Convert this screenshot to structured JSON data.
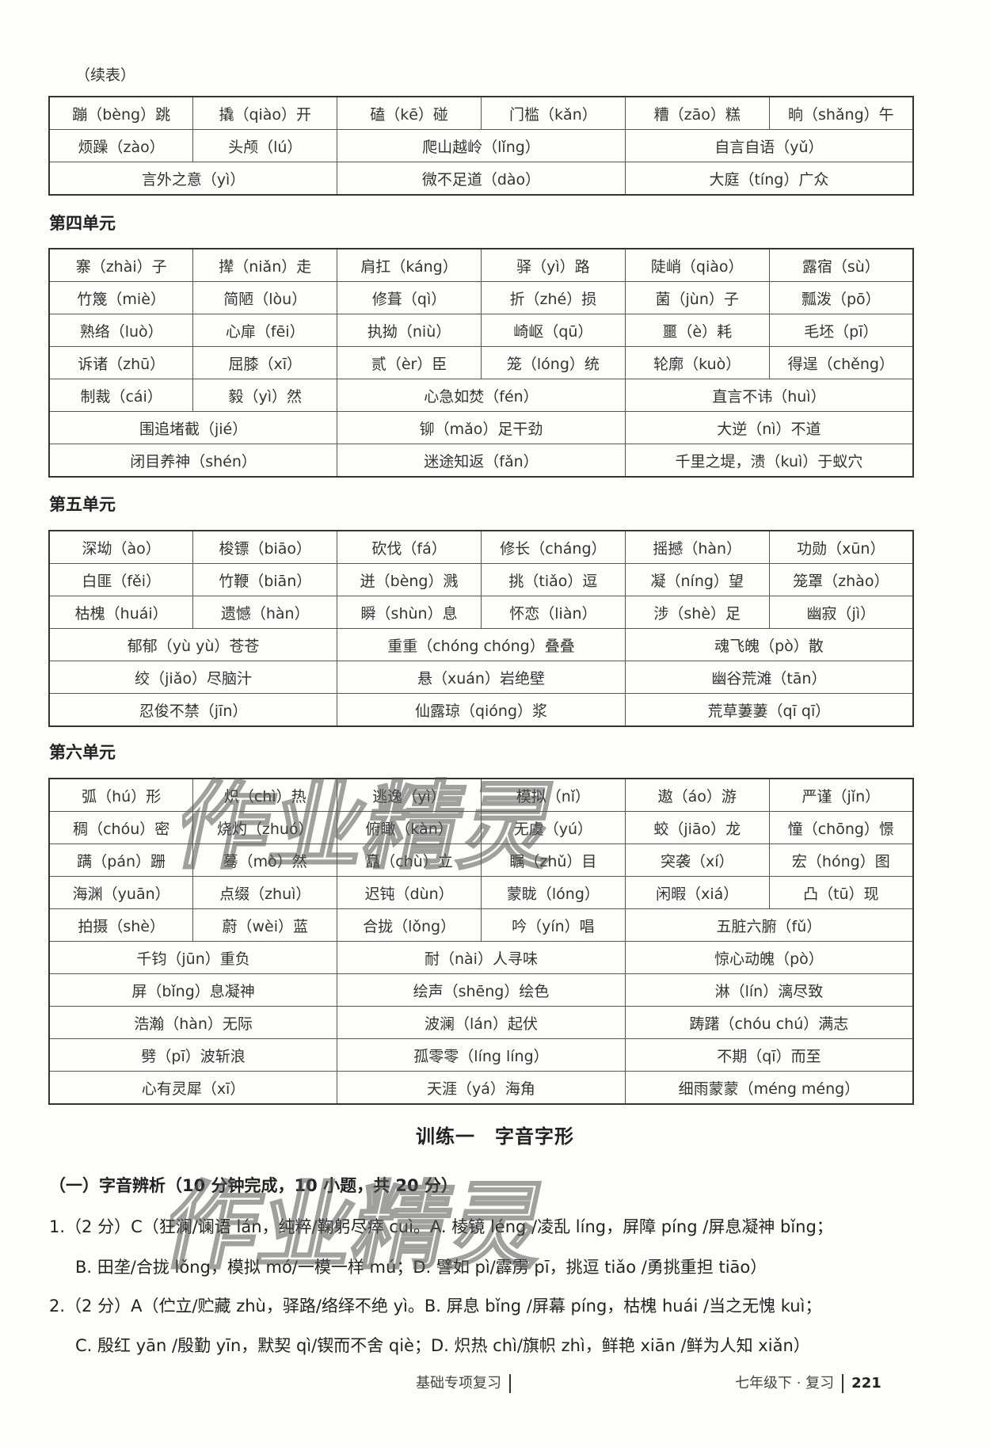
{
  "continued_label": "（续表）",
  "tables": [
    {
      "heading": "",
      "rows": [
        [
          {
            "t": "蹦（bèng）跳"
          },
          {
            "t": "撬（qiào）开"
          },
          {
            "t": "磕（kē）碰"
          },
          {
            "t": "门槛（kǎn）"
          },
          {
            "t": "糟（zāo）糕"
          },
          {
            "t": "晌（shǎng）午"
          }
        ],
        [
          {
            "t": "烦躁（zào）"
          },
          {
            "t": "头颅（lú）"
          },
          {
            "t": "爬山越岭（lǐng）",
            "s": 2
          },
          {
            "t": "自言自语（yǔ）",
            "s": 2
          }
        ],
        [
          {
            "t": "言外之意（yì）",
            "s": 2
          },
          {
            "t": "微不足道（dào）",
            "s": 2
          },
          {
            "t": "大庭（tíng）广众",
            "s": 2
          }
        ]
      ]
    },
    {
      "heading": "第四单元",
      "rows": [
        [
          {
            "t": "寨（zhài）子"
          },
          {
            "t": "撵（niǎn）走"
          },
          {
            "t": "肩扛（káng）"
          },
          {
            "t": "驿（yì）路"
          },
          {
            "t": "陡峭（qiào）"
          },
          {
            "t": "露宿（sù）"
          }
        ],
        [
          {
            "t": "竹篾（miè）"
          },
          {
            "t": "简陋（lòu）"
          },
          {
            "t": "修葺（qì）"
          },
          {
            "t": "折（zhé）损"
          },
          {
            "t": "菌（jùn）子"
          },
          {
            "t": "瓢泼（pō）"
          }
        ],
        [
          {
            "t": "熟络（luò）"
          },
          {
            "t": "心扉（fēi）"
          },
          {
            "t": "执拗（niù）"
          },
          {
            "t": "崎岖（qū）"
          },
          {
            "t": "噩（è）耗"
          },
          {
            "t": "毛坯（pī）"
          }
        ],
        [
          {
            "t": "诉诸（zhū）"
          },
          {
            "t": "屈膝（xī）"
          },
          {
            "t": "贰（èr）臣"
          },
          {
            "t": "笼（lóng）统"
          },
          {
            "t": "轮廓（kuò）"
          },
          {
            "t": "得逞（chěng）"
          }
        ],
        [
          {
            "t": "制裁（cái）"
          },
          {
            "t": "毅（yì）然"
          },
          {
            "t": "心急如焚（fén）",
            "s": 2
          },
          {
            "t": "直言不讳（huì）",
            "s": 2
          }
        ],
        [
          {
            "t": "围追堵截（jié）",
            "s": 2
          },
          {
            "t": "铆（mǎo）足干劲",
            "s": 2
          },
          {
            "t": "大逆（nì）不道",
            "s": 2
          }
        ],
        [
          {
            "t": "闭目养神（shén）",
            "s": 2
          },
          {
            "t": "迷途知返（fǎn）",
            "s": 2
          },
          {
            "t": "千里之堤，溃（kuì）于蚁穴",
            "s": 2
          }
        ]
      ]
    },
    {
      "heading": "第五单元",
      "rows": [
        [
          {
            "t": "深坳（ào）"
          },
          {
            "t": "梭镖（biāo）"
          },
          {
            "t": "砍伐（fá）"
          },
          {
            "t": "修长（cháng）"
          },
          {
            "t": "摇撼（hàn）"
          },
          {
            "t": "功勋（xūn）"
          }
        ],
        [
          {
            "t": "白匪（fěi）"
          },
          {
            "t": "竹鞭（biān）"
          },
          {
            "t": "迸（bèng）溅"
          },
          {
            "t": "挑（tiǎo）逗"
          },
          {
            "t": "凝（níng）望"
          },
          {
            "t": "笼罩（zhào）"
          }
        ],
        [
          {
            "t": "枯槐（huái）"
          },
          {
            "t": "遗憾（hàn）"
          },
          {
            "t": "瞬（shùn）息"
          },
          {
            "t": "怀恋（liàn）"
          },
          {
            "t": "涉（shè）足"
          },
          {
            "t": "幽寂（jì）"
          }
        ],
        [
          {
            "t": "郁郁（yù yù）苍苍",
            "s": 2
          },
          {
            "t": "重重（chóng chóng）叠叠",
            "s": 2
          },
          {
            "t": "魂飞魄（pò）散",
            "s": 2
          }
        ],
        [
          {
            "t": "绞（jiǎo）尽脑汁",
            "s": 2
          },
          {
            "t": "悬（xuán）岩绝壁",
            "s": 2
          },
          {
            "t": "幽谷荒滩（tān）",
            "s": 2
          }
        ],
        [
          {
            "t": "忍俊不禁（jīn）",
            "s": 2
          },
          {
            "t": "仙露琼（qióng）浆",
            "s": 2
          },
          {
            "t": "荒草萋萋（qī qī）",
            "s": 2
          }
        ]
      ]
    },
    {
      "heading": "第六单元",
      "rows": [
        [
          {
            "t": "弧（hú）形"
          },
          {
            "t": "炽（chì）热"
          },
          {
            "t": "逃逸（yì）"
          },
          {
            "t": "模拟（nǐ）"
          },
          {
            "t": "遨（áo）游"
          },
          {
            "t": "严谨（jǐn）"
          }
        ],
        [
          {
            "t": "稠（chóu）密"
          },
          {
            "t": "烧灼（zhuó）"
          },
          {
            "t": "俯瞰（kàn）"
          },
          {
            "t": "无虞（yú）"
          },
          {
            "t": "蛟（jiāo）龙"
          },
          {
            "t": "憧（chōng）憬"
          }
        ],
        [
          {
            "t": "蹒（pán）跚"
          },
          {
            "t": "蓦（mò）然"
          },
          {
            "t": "矗（chù）立"
          },
          {
            "t": "瞩（zhǔ）目"
          },
          {
            "t": "突袭（xí）"
          },
          {
            "t": "宏（hóng）图"
          }
        ],
        [
          {
            "t": "海渊（yuān）"
          },
          {
            "t": "点缀（zhuì）"
          },
          {
            "t": "迟钝（dùn）"
          },
          {
            "t": "蒙眬（lóng）"
          },
          {
            "t": "闲暇（xiá）"
          },
          {
            "t": "凸（tū）现"
          }
        ],
        [
          {
            "t": "拍摄（shè）"
          },
          {
            "t": "蔚（wèi）蓝"
          },
          {
            "t": "合拢（lǒng）"
          },
          {
            "t": "吟（yín）唱"
          },
          {
            "t": "五脏六腑（fǔ）",
            "s": 2
          }
        ],
        [
          {
            "t": "千钧（jūn）重负",
            "s": 2
          },
          {
            "t": "耐（nài）人寻味",
            "s": 2
          },
          {
            "t": "惊心动魄（pò）",
            "s": 2
          }
        ],
        [
          {
            "t": "屏（bǐng）息凝神",
            "s": 2
          },
          {
            "t": "绘声（shēng）绘色",
            "s": 2
          },
          {
            "t": "淋（lín）漓尽致",
            "s": 2
          }
        ],
        [
          {
            "t": "浩瀚（hàn）无际",
            "s": 2
          },
          {
            "t": "波澜（lán）起伏",
            "s": 2
          },
          {
            "t": "踌躇（chóu chú）满志",
            "s": 2
          }
        ],
        [
          {
            "t": "劈（pī）波斩浪",
            "s": 2
          },
          {
            "t": "孤零零（líng líng）",
            "s": 2
          },
          {
            "t": "不期（qī）而至",
            "s": 2
          }
        ],
        [
          {
            "t": "心有灵犀（xī）",
            "s": 2
          },
          {
            "t": "天涯（yá）海角",
            "s": 2
          },
          {
            "t": "细雨蒙蒙（méng méng）",
            "s": 2
          }
        ]
      ]
    }
  ],
  "exercise": {
    "title": "训练一　字音字形",
    "section": "（一）字音辨析（10 分钟完成，10 小题，共 20 分）",
    "lines": [
      "1.（2 分）C（狂澜/谰语 lán，纯粹/鞠躬尽瘁 cuì。A. 棱镜 léng /凌乱 líng，屏障 píng /屏息凝神 bǐng；",
      "B. 田垄/合拢 lǒng，模拟 mó/一模一样 mú；D. 譬如 pì/霹雳 pī，挑逗 tiǎo /勇挑重担 tiāo）",
      "2.（2 分）A（伫立/贮藏 zhù，驿路/络绎不绝 yì。B. 屏息 bǐng /屏幕 píng，枯槐 huái /当之无愧 kuì；",
      "C. 殷红 yān /殷勤 yīn，默契 qì/锲而不舍 qiè；D. 炽热 chì/旗帜 zhì，鲜艳 xiān /鲜为人知 xiǎn）"
    ]
  },
  "footer": {
    "left": "基础专项复习",
    "right": "七年级下 · 复习",
    "page": "221"
  },
  "watermark": "作业精灵"
}
